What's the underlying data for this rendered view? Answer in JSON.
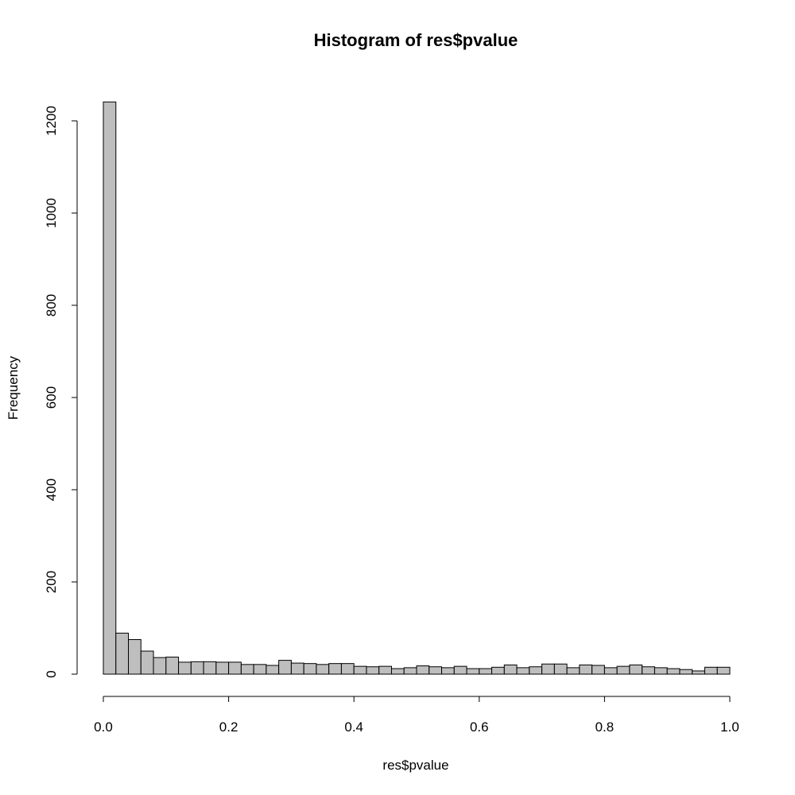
{
  "chart_data": {
    "type": "bar",
    "title": "Histogram of res$pvalue",
    "xlabel": "res$pvalue",
    "ylabel": "Frequency",
    "bin_width": 0.02,
    "xlim": [
      0,
      1
    ],
    "ylim": [
      0,
      1240
    ],
    "x_ticks": [
      "0.0",
      "0.2",
      "0.4",
      "0.6",
      "0.8",
      "1.0"
    ],
    "y_ticks": [
      "0",
      "200",
      "400",
      "600",
      "800",
      "1000",
      "1200"
    ],
    "bar_color": "#bebebe",
    "grid": false,
    "values": [
      1241,
      89,
      75,
      50,
      36,
      37,
      26,
      27,
      27,
      26,
      26,
      21,
      21,
      19,
      30,
      24,
      23,
      21,
      23,
      23,
      17,
      16,
      17,
      12,
      14,
      18,
      16,
      14,
      17,
      12,
      12,
      15,
      20,
      14,
      16,
      22,
      22,
      14,
      20,
      19,
      14,
      17,
      20,
      16,
      14,
      12,
      10,
      7,
      15,
      15
    ]
  }
}
